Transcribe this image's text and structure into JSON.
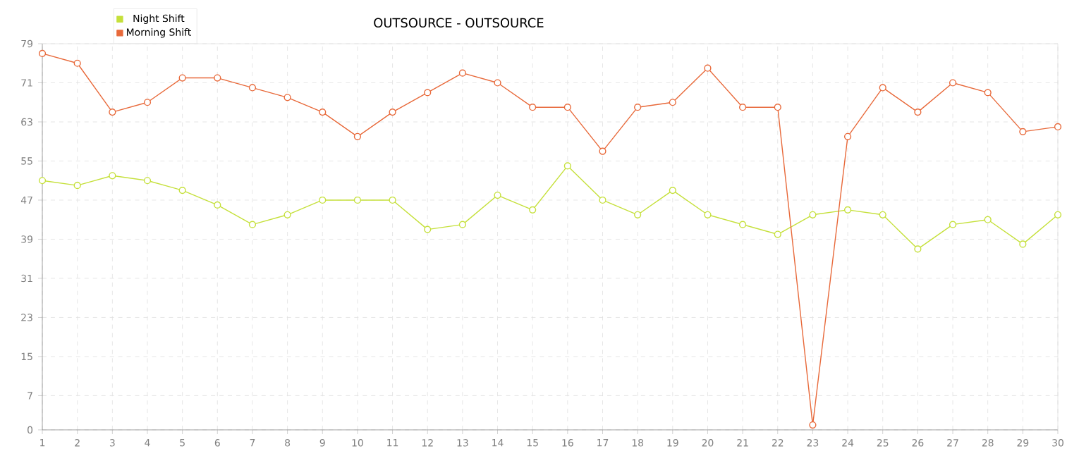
{
  "chart_data": {
    "type": "line",
    "title": "OUTSOURCE - OUTSOURCE",
    "categories": [
      "1",
      "2",
      "3",
      "4",
      "5",
      "6",
      "7",
      "8",
      "9",
      "10",
      "11",
      "12",
      "13",
      "14",
      "15",
      "16",
      "17",
      "18",
      "19",
      "20",
      "21",
      "22",
      "23",
      "24",
      "25",
      "26",
      "27",
      "28",
      "29",
      "30"
    ],
    "series": [
      {
        "name": "Night Shift",
        "color": "#c5e03a",
        "values": [
          51,
          50,
          52,
          51,
          49,
          46,
          42,
          44,
          47,
          47,
          47,
          41,
          42,
          48,
          45,
          54,
          47,
          44,
          49,
          44,
          42,
          40,
          44,
          45,
          44,
          37,
          42,
          43,
          38,
          44
        ]
      },
      {
        "name": "Morning Shift",
        "color": "#e8693a",
        "values": [
          77,
          75,
          65,
          67,
          72,
          72,
          70,
          68,
          65,
          60,
          65,
          69,
          73,
          71,
          66,
          66,
          57,
          66,
          67,
          74,
          66,
          66,
          1,
          60,
          70,
          65,
          71,
          69,
          61,
          62
        ]
      }
    ],
    "ylim": [
      0,
      79
    ],
    "yticks": [
      0,
      7,
      15,
      23,
      31,
      39,
      47,
      55,
      63,
      71,
      79
    ],
    "grid": true,
    "legend": "top left",
    "marker": "circle",
    "line_style": "solid"
  }
}
